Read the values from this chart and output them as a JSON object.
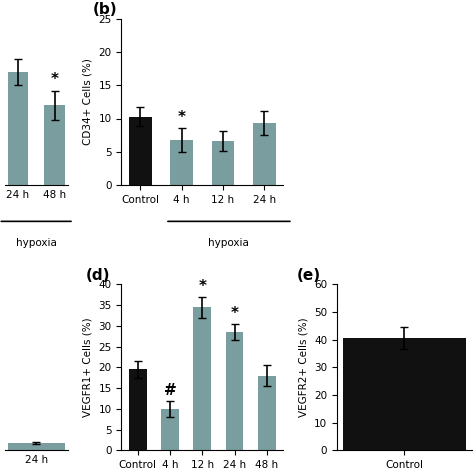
{
  "panel_b": {
    "label": "(b)",
    "categories": [
      "Control",
      "4 h",
      "12 h",
      "24 h"
    ],
    "values": [
      10.3,
      6.7,
      6.6,
      9.3
    ],
    "errors": [
      1.5,
      1.8,
      1.5,
      1.8
    ],
    "colors": [
      "#111111",
      "#7a9e9f",
      "#7a9e9f",
      "#7a9e9f"
    ],
    "ylabel": "CD34+ Cells (%)",
    "ylim": [
      0,
      25
    ],
    "yticks": [
      0,
      5,
      10,
      15,
      20,
      25
    ],
    "annotations": [
      {
        "idx": 1,
        "text": "*"
      }
    ]
  },
  "panel_d": {
    "label": "(d)",
    "categories": [
      "Control",
      "4 h",
      "12 h",
      "24 h",
      "48 h"
    ],
    "values": [
      19.5,
      10.0,
      34.5,
      28.5,
      18.0
    ],
    "errors": [
      2.0,
      2.0,
      2.5,
      2.0,
      2.5
    ],
    "colors": [
      "#111111",
      "#7a9e9f",
      "#7a9e9f",
      "#7a9e9f",
      "#7a9e9f"
    ],
    "ylabel": "VEGFR1+ Cells (%)",
    "ylim": [
      0,
      40
    ],
    "yticks": [
      0,
      5,
      10,
      15,
      20,
      25,
      30,
      35,
      40
    ],
    "annotations": [
      {
        "idx": 1,
        "text": "#"
      },
      {
        "idx": 2,
        "text": "*"
      },
      {
        "idx": 3,
        "text": "*"
      }
    ]
  },
  "panel_e": {
    "label": "(e)",
    "categories": [
      "Control"
    ],
    "values": [
      40.5
    ],
    "errors": [
      4.0
    ],
    "colors": [
      "#111111"
    ],
    "ylabel": "VEGFR2+ Cells (%)",
    "ylim": [
      0,
      60
    ],
    "yticks": [
      0,
      10,
      20,
      30,
      40,
      50,
      60
    ]
  },
  "panel_left_top": {
    "categories": [
      "24 h",
      "48 h"
    ],
    "values": [
      17.0,
      12.0
    ],
    "errors": [
      2.0,
      2.2
    ],
    "colors": [
      "#7a9e9f",
      "#7a9e9f"
    ],
    "ylim": [
      0,
      25
    ],
    "ylim_display": [
      8,
      25
    ],
    "annotations": [
      {
        "idx": 1,
        "text": "*"
      }
    ]
  },
  "panel_left_bottom": {
    "categories": [
      "24 h"
    ],
    "values": [
      1.8
    ],
    "errors": [
      0.3
    ],
    "colors": [
      "#7a9e9f"
    ],
    "ylim": [
      0,
      40
    ]
  },
  "bar_width": 0.55,
  "bar_color_control": "#111111",
  "bar_color_hypoxia": "#7a9e9f",
  "background": "#ffffff",
  "tick_fontsize": 7.5,
  "label_fontsize": 7.5,
  "panel_label_fontsize": 11
}
